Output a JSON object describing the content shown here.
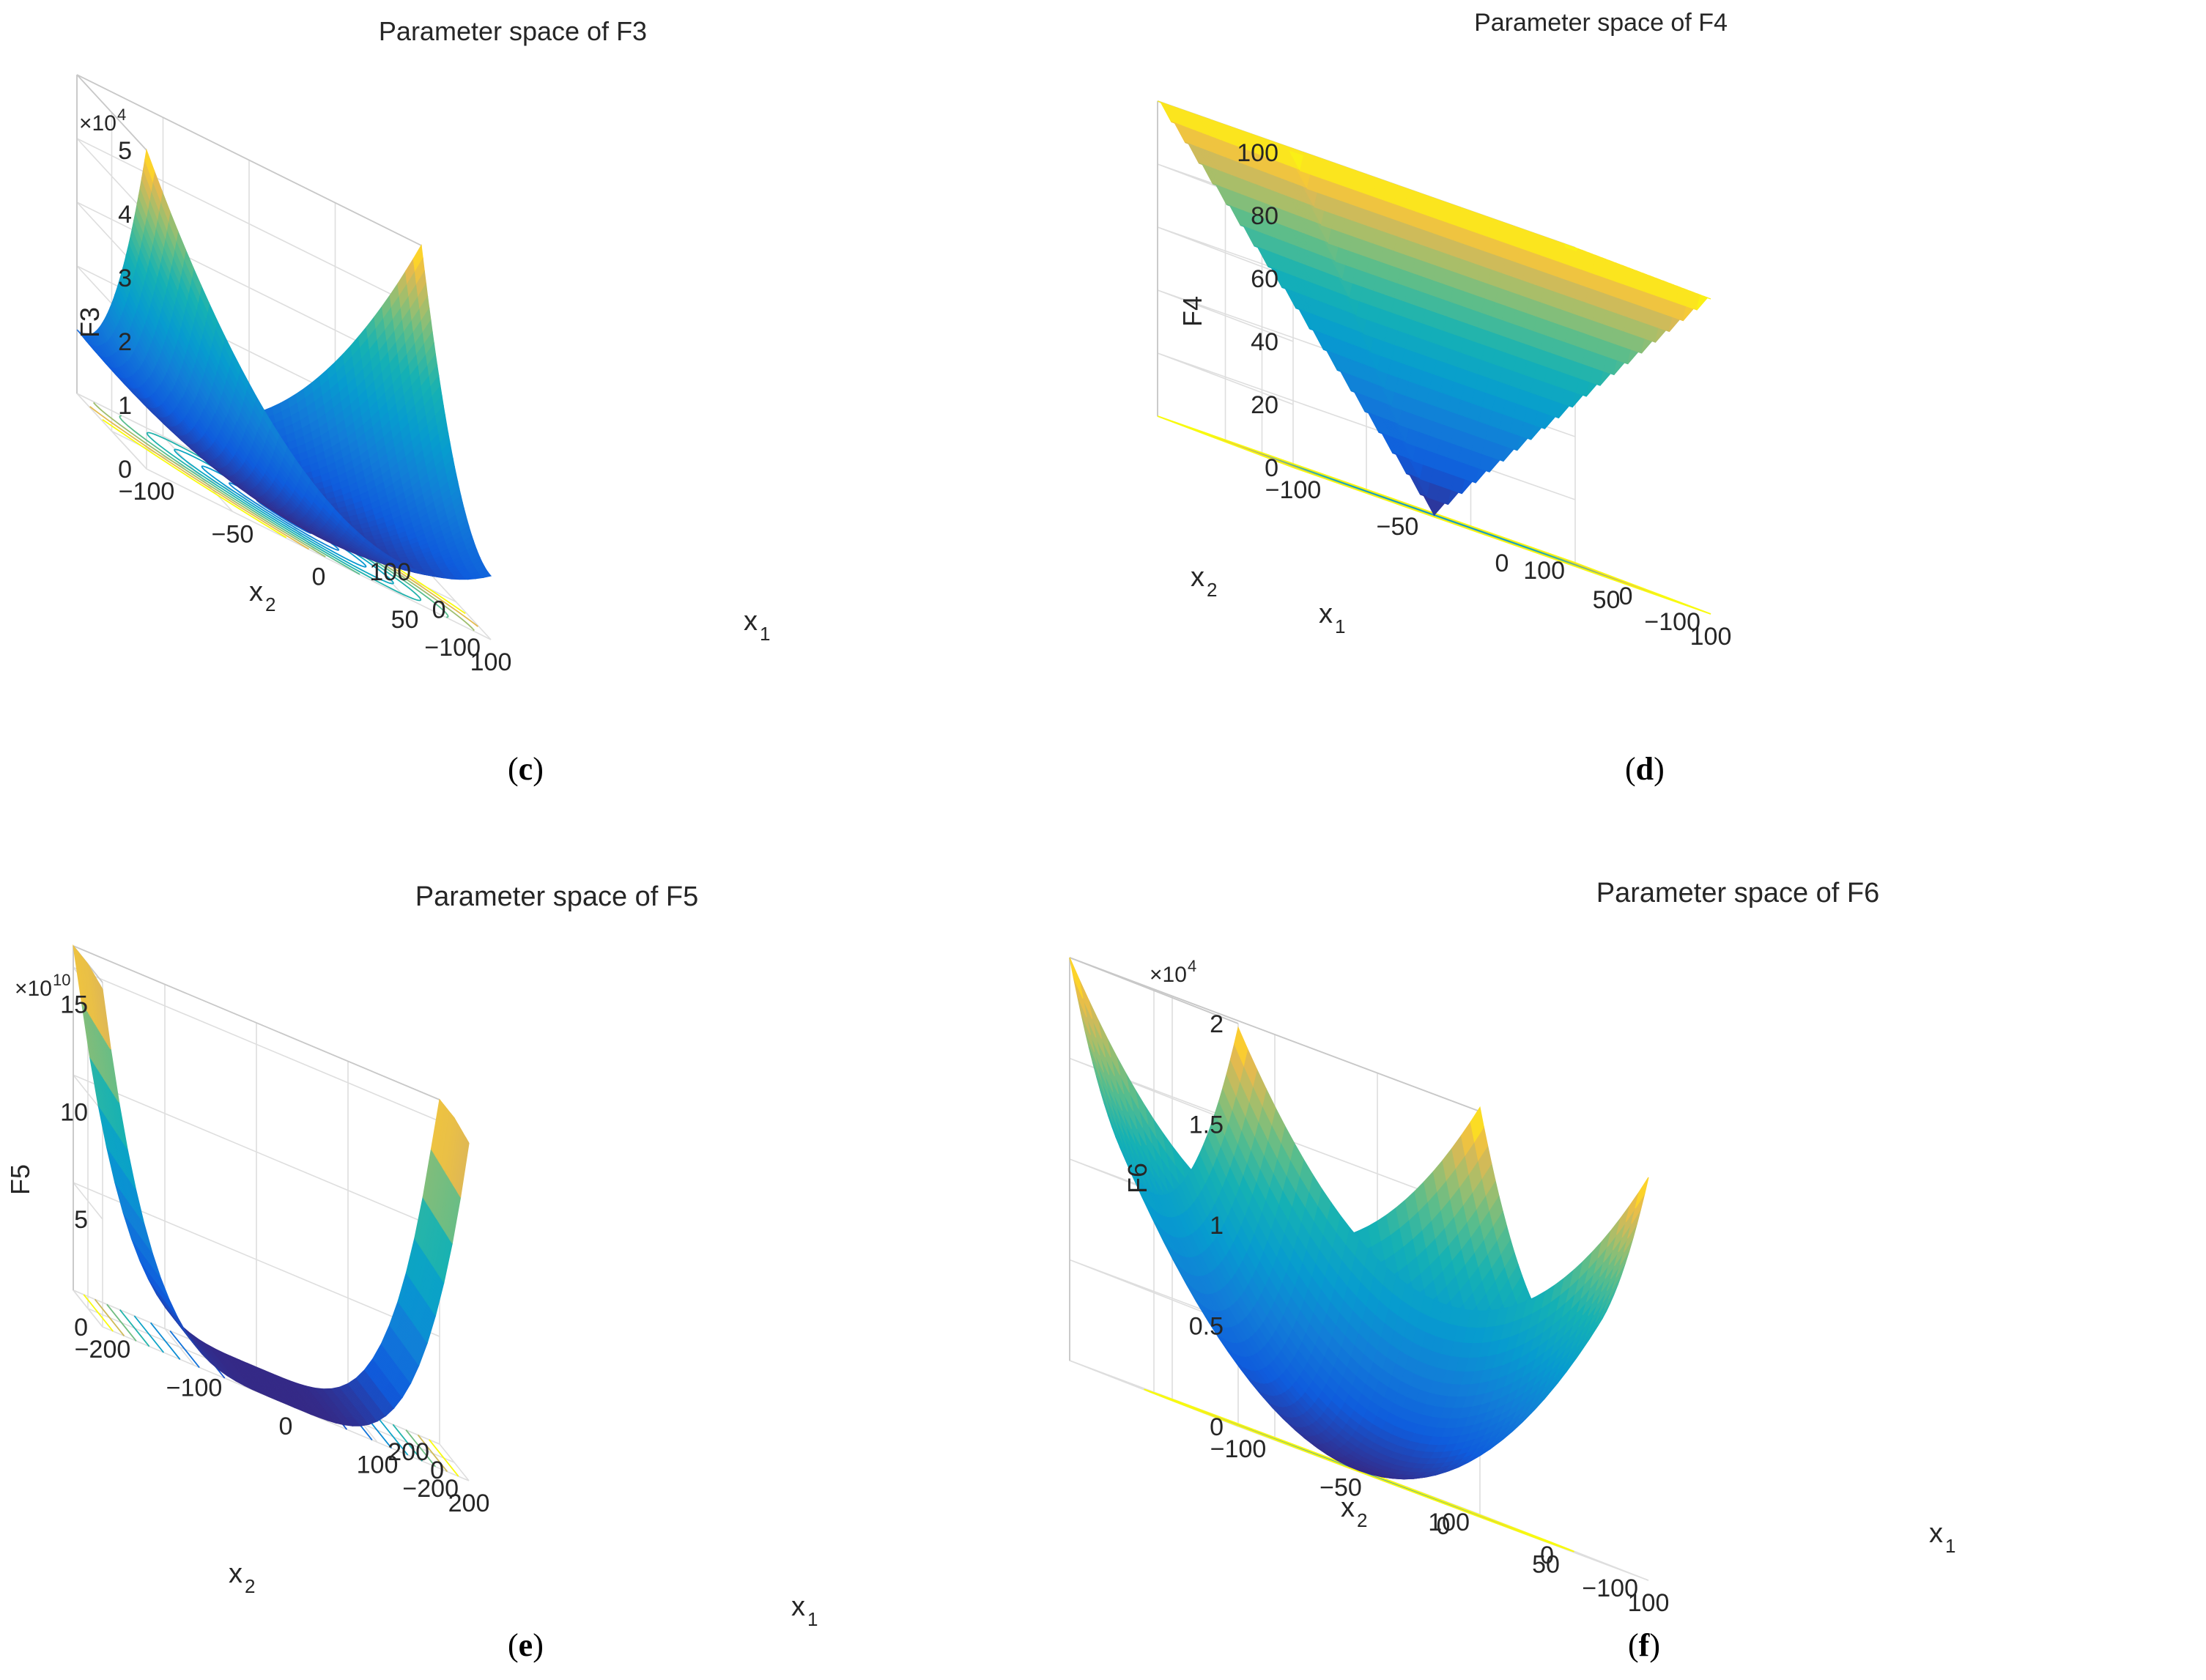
{
  "chart_data": [
    {
      "panel": "c",
      "type": "surface3d",
      "title": "Parameter space of F3",
      "zlabel": "F3",
      "xlabel_main": "x",
      "xlabel_sub": "1",
      "ylabel_main": "x",
      "ylabel_sub": "2",
      "multiplier_base": "×10",
      "multiplier_exp": "4",
      "x_range": [
        -100,
        100
      ],
      "y_range": [
        -100,
        100
      ],
      "z_range": [
        0,
        5
      ],
      "z_ticks": [
        "0",
        "1",
        "2",
        "3",
        "4",
        "5"
      ],
      "x_ticks": [
        "−100",
        "−50",
        "0",
        "50",
        "100"
      ],
      "y_ticks": [
        "−100",
        "0",
        "100"
      ],
      "surface": "F3(x1,x2) = (x1)^2 + (x1 + x2)^2 (Schwefel 1.2, shown in units of 10^4)",
      "contour_levels": 9,
      "colormap": "parula"
    },
    {
      "panel": "d",
      "type": "surface3d",
      "title": "Parameter space of F4",
      "zlabel": "F4",
      "xlabel_main": "x",
      "xlabel_sub": "1",
      "ylabel_main": "x",
      "ylabel_sub": "2",
      "x_range": [
        -100,
        100
      ],
      "y_range": [
        -100,
        100
      ],
      "z_range": [
        0,
        100
      ],
      "z_ticks": [
        "0",
        "20",
        "40",
        "60",
        "80",
        "100"
      ],
      "x_ticks": [
        "−100",
        "−50",
        "0",
        "50",
        "100"
      ],
      "y_ticks": [
        "−100",
        "0",
        "100"
      ],
      "surface": "F4(x1,x2) = max(|x1|, |x2|)",
      "contour_levels": 10,
      "colormap": "parula"
    },
    {
      "panel": "e",
      "type": "surface3d",
      "title": "Parameter space of F5",
      "zlabel": "F5",
      "xlabel_main": "x",
      "xlabel_sub": "1",
      "ylabel_main": "x",
      "ylabel_sub": "2",
      "multiplier_base": "×10",
      "multiplier_exp": "10",
      "x_range": [
        -200,
        200
      ],
      "y_range": [
        -200,
        200
      ],
      "z_range": [
        0,
        16
      ],
      "z_ticks": [
        "0",
        "5",
        "10",
        "15"
      ],
      "x_ticks": [
        "−200",
        "−100",
        "0",
        "100",
        "200"
      ],
      "y_ticks": [
        "−200",
        "0",
        "200"
      ],
      "surface": "Rosenbrock-type valley: 100(x2 − x1^2)^2 + (x1 − 1)^2, scaled by 10^10",
      "contour_levels": 8,
      "colormap": "parula"
    },
    {
      "panel": "f",
      "type": "surface3d",
      "title": "Parameter space of F6",
      "zlabel": "F6",
      "xlabel_main": "x",
      "xlabel_sub": "1",
      "ylabel_main": "x",
      "ylabel_sub": "2",
      "multiplier_base": "×10",
      "multiplier_exp": "4",
      "x_range": [
        -100,
        100
      ],
      "y_range": [
        -100,
        100
      ],
      "z_range": [
        0,
        2
      ],
      "z_ticks": [
        "0",
        "0.5",
        "1",
        "1.5",
        "2"
      ],
      "x_ticks": [
        "−100",
        "−50",
        "0",
        "50",
        "100"
      ],
      "y_ticks": [
        "−100",
        "0",
        "100"
      ],
      "surface": "F6(x1,x2) = (x1 + 0.5)^2 + (x2 + 0.5)^2 (shown in units of 10^4)",
      "contour_levels": 9,
      "colormap": "parula"
    }
  ],
  "captions": [
    {
      "panel": "c",
      "open": "(",
      "letter": "c",
      "close": ")"
    },
    {
      "panel": "d",
      "open": "(",
      "letter": "d",
      "close": ")"
    },
    {
      "panel": "e",
      "open": "(",
      "letter": "e",
      "close": ")"
    },
    {
      "panel": "f",
      "open": "(",
      "letter": "f",
      "close": ")"
    }
  ]
}
